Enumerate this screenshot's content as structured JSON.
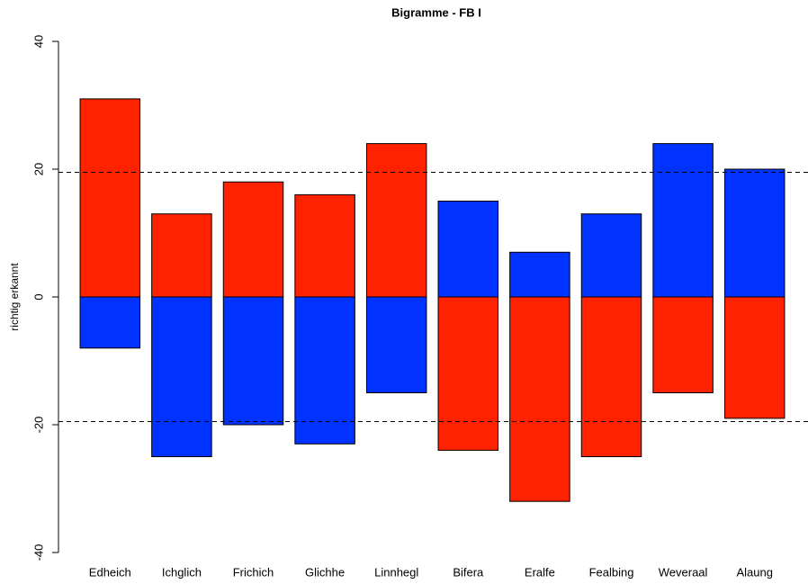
{
  "chart_data": {
    "type": "bar",
    "title": "Bigramme - FB I",
    "y_label": "richtig erkannt",
    "categories": [
      "Edheich",
      "Ichglich",
      "Frichich",
      "Glichhe",
      "Linnhegl",
      "Bifera",
      "Eralfe",
      "Fealbing",
      "Weveraal",
      "Alaung"
    ],
    "series": [
      {
        "values": [
          31,
          13,
          18,
          16,
          24,
          15,
          7,
          13,
          24,
          20
        ],
        "colors": [
          "#ff2200",
          "#ff2200",
          "#ff2200",
          "#ff2200",
          "#ff2200",
          "#0033ff",
          "#0033ff",
          "#0033ff",
          "#0033ff",
          "#0033ff"
        ]
      },
      {
        "values": [
          -8,
          -25,
          -20,
          -23,
          -15,
          -24,
          -32,
          -25,
          -15,
          -19
        ],
        "colors": [
          "#0033ff",
          "#0033ff",
          "#0033ff",
          "#0033ff",
          "#0033ff",
          "#ff2200",
          "#ff2200",
          "#ff2200",
          "#ff2200",
          "#ff2200"
        ]
      }
    ],
    "ylim": [
      -40,
      40
    ],
    "yticks": [
      -40,
      -20,
      0,
      20,
      40
    ],
    "hlines": [
      19.5,
      -19.5
    ]
  }
}
